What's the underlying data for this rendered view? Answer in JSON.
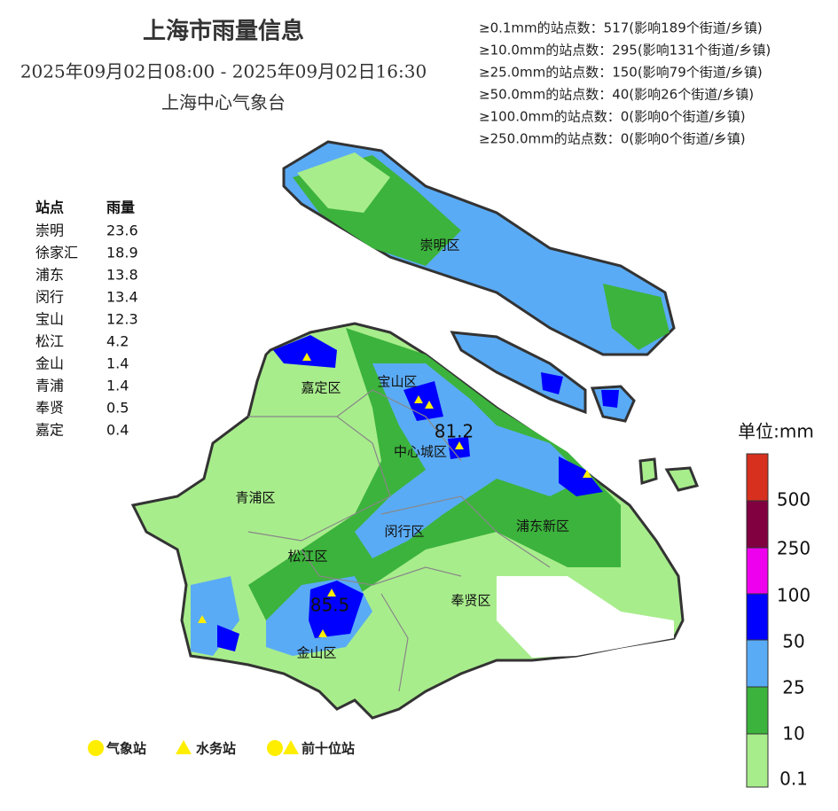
{
  "header": {
    "title": "上海市雨量信息",
    "time_range": "2025年09月02日08:00 - 2025年09月02日16:30",
    "issuer": "上海中心气象台"
  },
  "stats": [
    "≥0.1mm的站点数：517(影响189个街道/乡镇)",
    "≥10.0mm的站点数：295(影响131个街道/乡镇)",
    "≥25.0mm的站点数：150(影响79个街道/乡镇)",
    "≥50.0mm的站点数：40(影响26个街道/乡镇)",
    "≥100.0mm的站点数：0(影响0个街道/乡镇)",
    "≥250.0mm的站点数：0(影响0个街道/乡镇)"
  ],
  "station_table": {
    "header": [
      "站点",
      "雨量"
    ],
    "rows": [
      [
        "崇明",
        23.6
      ],
      [
        "徐家汇",
        18.9
      ],
      [
        "浦东",
        13.8
      ],
      [
        "闵行",
        13.4
      ],
      [
        "宝山",
        12.3
      ],
      [
        "松江",
        4.2
      ],
      [
        "金山",
        1.4
      ],
      [
        "青浦",
        1.4
      ],
      [
        "奉贤",
        0.5
      ],
      [
        "嘉定",
        0.4
      ]
    ]
  },
  "districts": [
    "崇明区",
    "嘉定区",
    "宝山区",
    "中心城区",
    "青浦区",
    "闵行区",
    "浦东新区",
    "松江区",
    "奉贤区",
    "金山区"
  ],
  "point_labels": [
    81.2,
    85.5
  ],
  "legend": {
    "title": "单位:mm",
    "ticks": [
      "500",
      "250",
      "100",
      "50",
      "25",
      "10",
      "0.1"
    ]
  },
  "marker_legend": [
    "气象站",
    "水务站",
    "前十位站"
  ]
}
